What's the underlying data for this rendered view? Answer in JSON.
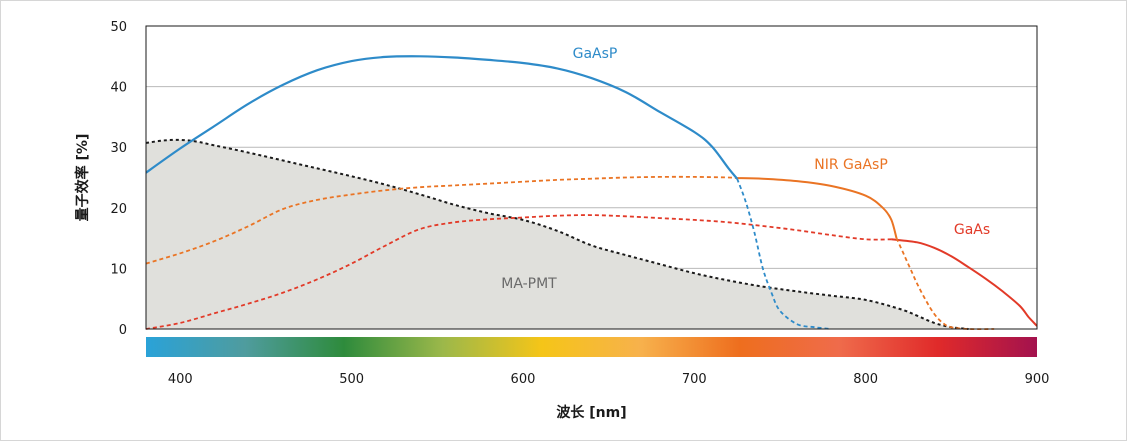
{
  "chart_data": {
    "type": "line",
    "xlabel": "波长 [nm]",
    "ylabel": "量子效率 [%]",
    "xlim": [
      380,
      900
    ],
    "ylim": [
      0,
      50
    ],
    "x_ticks": [
      400,
      500,
      600,
      700,
      800,
      900
    ],
    "y_ticks": [
      0,
      10,
      20,
      30,
      40,
      50
    ],
    "grid": "horizontal",
    "colors": {
      "GaAsP": "#2e8bc9",
      "NIR GaAsP": "#ea7424",
      "GaAs": "#e23a28",
      "MA-PMT": "#1a1a1a",
      "MA-PMT fill": "#e0e0dc",
      "grid": "#b9b9b9"
    },
    "spectrum_bar_colors": [
      "#2aa2d8",
      "#4f9c9e",
      "#2e8b3c",
      "#9cb84a",
      "#f5c518",
      "#f7b14c",
      "#ee6e1e",
      "#ef6b4b",
      "#e02a2a",
      "#a3124e"
    ],
    "series": [
      {
        "name": "GaAsP",
        "label": "GaAsP",
        "style": "solid-then-dashed",
        "dash_from_x": 725,
        "x": [
          380,
          400,
          420,
          440,
          460,
          480,
          500,
          520,
          540,
          560,
          580,
          600,
          620,
          640,
          660,
          680,
          700,
          710,
          720,
          725,
          730,
          735,
          740,
          745,
          750,
          760,
          770,
          780
        ],
        "y": [
          25.8,
          29.8,
          33.5,
          37.2,
          40.3,
          42.7,
          44.2,
          44.9,
          45.0,
          44.8,
          44.4,
          43.9,
          43.0,
          41.4,
          39.1,
          35.8,
          32.5,
          30.2,
          26.5,
          24.8,
          21.0,
          16.0,
          10.0,
          6.0,
          3.0,
          0.8,
          0.3,
          0.0
        ]
      },
      {
        "name": "NIR GaAsP",
        "label": "NIR GaAsP",
        "style": "dashed-then-solid-then-dashed",
        "solid_from_x": 725,
        "dash_from_x": 818,
        "x": [
          380,
          400,
          420,
          440,
          460,
          480,
          500,
          520,
          540,
          560,
          580,
          600,
          620,
          640,
          660,
          680,
          700,
          720,
          725,
          740,
          760,
          780,
          800,
          810,
          815,
          818,
          822,
          826,
          830,
          835,
          840,
          845,
          850,
          860,
          875
        ],
        "y": [
          10.8,
          12.5,
          14.5,
          17.0,
          19.8,
          21.3,
          22.2,
          22.9,
          23.4,
          23.7,
          24.0,
          24.3,
          24.6,
          24.8,
          25.0,
          25.1,
          25.1,
          25.0,
          24.9,
          24.8,
          24.4,
          23.6,
          22.0,
          20.0,
          18.0,
          15.0,
          12.5,
          10.0,
          7.5,
          4.8,
          2.5,
          1.0,
          0.3,
          0.0,
          0.0
        ]
      },
      {
        "name": "GaAs",
        "label": "GaAs",
        "style": "dashed-then-solid",
        "solid_from_x": 815,
        "x": [
          380,
          400,
          420,
          440,
          460,
          480,
          500,
          520,
          540,
          560,
          580,
          600,
          620,
          640,
          660,
          680,
          700,
          720,
          740,
          760,
          780,
          800,
          815,
          830,
          840,
          850,
          860,
          870,
          880,
          890,
          895,
          900
        ],
        "y": [
          0.0,
          1.0,
          2.6,
          4.2,
          6.0,
          8.2,
          10.8,
          13.8,
          16.5,
          17.6,
          18.1,
          18.4,
          18.7,
          18.8,
          18.6,
          18.3,
          18.0,
          17.6,
          17.0,
          16.3,
          15.5,
          14.8,
          14.8,
          14.3,
          13.4,
          12.0,
          10.2,
          8.3,
          6.2,
          3.8,
          2.0,
          0.5
        ]
      },
      {
        "name": "MA-PMT",
        "label": "MA-PMT",
        "style": "dotted-filled",
        "x": [
          380,
          390,
          400,
          410,
          420,
          440,
          460,
          480,
          500,
          520,
          540,
          560,
          580,
          600,
          620,
          640,
          660,
          680,
          700,
          720,
          740,
          760,
          780,
          800,
          820,
          830,
          840,
          850,
          860
        ],
        "y": [
          30.7,
          31.1,
          31.2,
          30.9,
          30.3,
          29.1,
          27.8,
          26.5,
          25.2,
          23.8,
          22.2,
          20.5,
          19.1,
          18.0,
          16.2,
          13.8,
          12.2,
          10.7,
          9.2,
          8.0,
          7.0,
          6.2,
          5.5,
          4.8,
          3.3,
          2.2,
          1.0,
          0.3,
          0.0
        ]
      }
    ]
  }
}
